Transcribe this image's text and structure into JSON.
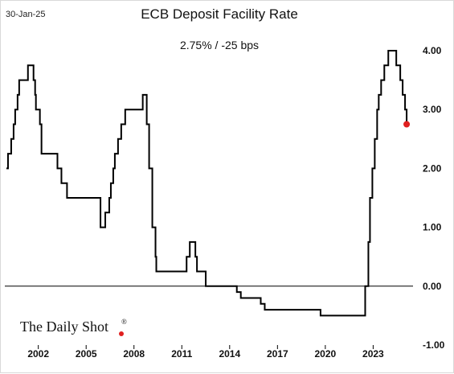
{
  "header": {
    "date": "30-Jan-25",
    "title": "ECB Deposit Facility Rate",
    "subtitle": "2.75%  /  -25 bps"
  },
  "branding": {
    "logo_text": "The Daily Shot",
    "logo_mark": "®",
    "dot_color": "#e02020"
  },
  "colors": {
    "line": "#000000",
    "endpoint": "#e02020",
    "zero_line": "#000000"
  },
  "chart_data": {
    "type": "line",
    "step": true,
    "title": "ECB Deposit Facility Rate",
    "subtitle": "2.75%  /  -25 bps",
    "xlabel": "",
    "ylabel": "",
    "xlim": [
      1999.9,
      2025.5
    ],
    "ylim": [
      -1.0,
      4.0
    ],
    "x_ticks": [
      2002,
      2005,
      2008,
      2011,
      2014,
      2017,
      2020,
      2023
    ],
    "x_tick_labels": [
      "2002",
      "2005",
      "2008",
      "2011",
      "2014",
      "2017",
      "2020",
      "2023"
    ],
    "y_ticks": [
      -1.0,
      0.0,
      1.0,
      2.0,
      3.0,
      4.0
    ],
    "y_tick_labels": [
      "-1.00",
      "0.00",
      "1.00",
      "2.00",
      "3.00",
      "4.00"
    ],
    "y_axis_side": "right",
    "grid": false,
    "zero_line": true,
    "series": [
      {
        "values_x": [
          2000.0,
          2000.1,
          2000.3,
          2000.45,
          2000.55,
          2000.7,
          2000.8,
          2001.35,
          2001.7,
          2001.8,
          2001.85,
          2002.1,
          2002.2,
          2003.2,
          2003.45,
          2003.8,
          2005.9,
          2006.2,
          2006.45,
          2006.55,
          2006.7,
          2006.8,
          2007.0,
          2007.2,
          2007.45,
          2008.55,
          2008.8,
          2008.95,
          2009.15,
          2009.35,
          2009.4,
          2009.5,
          2011.3,
          2011.5,
          2011.85,
          2011.95,
          2012.5,
          2014.45,
          2014.7,
          2015.95,
          2016.2,
          2019.7,
          2022.5,
          2022.7,
          2022.8,
          2022.95,
          2023.1,
          2023.25,
          2023.35,
          2023.5,
          2023.7,
          2023.95,
          2024.45,
          2024.7,
          2024.85,
          2025.0
        ],
        "values_y": [
          2.0,
          2.25,
          2.5,
          2.75,
          3.0,
          3.25,
          3.5,
          3.75,
          3.5,
          3.25,
          3.0,
          2.75,
          2.25,
          2.0,
          1.75,
          1.5,
          1.0,
          1.25,
          1.5,
          1.75,
          2.0,
          2.25,
          2.5,
          2.75,
          3.0,
          3.25,
          2.75,
          2.0,
          1.0,
          0.5,
          0.25,
          0.25,
          0.5,
          0.75,
          0.5,
          0.25,
          0.0,
          -0.1,
          -0.2,
          -0.3,
          -0.4,
          -0.5,
          0.0,
          0.75,
          1.5,
          2.0,
          2.5,
          3.0,
          3.25,
          3.5,
          3.75,
          4.0,
          3.75,
          3.5,
          3.25,
          3.0
        ],
        "end_x": 2025.1,
        "end_y": 2.75
      }
    ]
  }
}
